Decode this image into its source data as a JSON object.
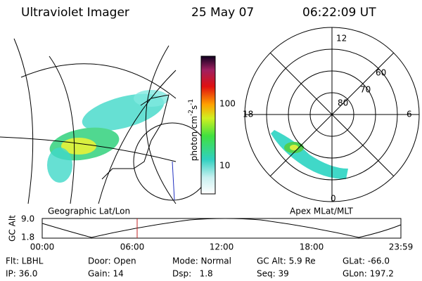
{
  "header": {
    "title": "Ultraviolet Imager",
    "date": "25 May 07",
    "time": "06:22:09 UT"
  },
  "colorbar": {
    "label": "photon cm",
    "exp1": "-2",
    "unit2": "s",
    "exp2": "-1",
    "ticks": [
      "100",
      "10"
    ]
  },
  "polar": {
    "mlt_labels": [
      "12",
      "18",
      "6",
      "0"
    ],
    "lat_labels": [
      "80",
      "70",
      "60"
    ]
  },
  "timeline": {
    "axis_label": "GC Alt",
    "ymax": "9.0",
    "ymin": "1.8",
    "left_title": "Geographic Lat/Lon",
    "right_title": "Apex MLat/MLT",
    "times": [
      "00:00",
      "06:00",
      "12:00",
      "18:00",
      "23:59"
    ]
  },
  "info": {
    "rows": [
      [
        "Flt: LBHL",
        "Door: Open",
        "Mode: Normal",
        "GC Alt: 5.9 Re",
        "GLat: -66.0"
      ],
      [
        "IP: 36.0",
        "Gain: 14",
        "Dsp:   1.8",
        "Seq: 39",
        "GLon: 197.2"
      ]
    ]
  }
}
